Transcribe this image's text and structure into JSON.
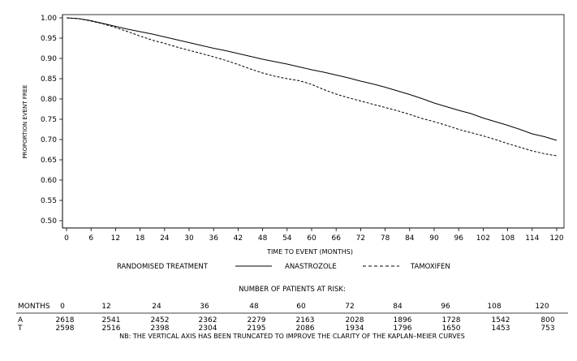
{
  "chart_data": {
    "type": "line",
    "title": "",
    "xlabel": "TIME TO EVENT (MONTHS)",
    "ylabel": "PROPORTION EVENT FREE",
    "xlim": [
      0,
      120
    ],
    "ylim": [
      0.5,
      1.0
    ],
    "x_ticks": [
      0,
      6,
      12,
      18,
      24,
      30,
      36,
      42,
      48,
      54,
      60,
      66,
      72,
      78,
      84,
      90,
      96,
      102,
      108,
      114,
      120
    ],
    "y_ticks": [
      "0.50",
      "0.55",
      "0.60",
      "0.65",
      "0.70",
      "0.75",
      "0.80",
      "0.85",
      "0.90",
      "0.95",
      "1.00"
    ],
    "grid": false,
    "legend": {
      "title": "RANDOMISED TREATMENT",
      "placement": "bottom"
    },
    "series": [
      {
        "name": "ANASTROZOLE",
        "style": "solid",
        "x": [
          0,
          3,
          6,
          9,
          12,
          15,
          18,
          21,
          24,
          27,
          30,
          33,
          36,
          39,
          42,
          45,
          48,
          51,
          54,
          57,
          60,
          63,
          66,
          69,
          72,
          75,
          78,
          81,
          84,
          87,
          90,
          93,
          96,
          99,
          102,
          105,
          108,
          111,
          114,
          117,
          120
        ],
        "values": [
          1.0,
          0.998,
          0.993,
          0.986,
          0.979,
          0.972,
          0.966,
          0.96,
          0.953,
          0.946,
          0.939,
          0.932,
          0.925,
          0.919,
          0.912,
          0.905,
          0.898,
          0.892,
          0.886,
          0.879,
          0.872,
          0.866,
          0.859,
          0.852,
          0.844,
          0.837,
          0.829,
          0.82,
          0.811,
          0.801,
          0.79,
          0.781,
          0.772,
          0.764,
          0.753,
          0.744,
          0.735,
          0.725,
          0.714,
          0.707,
          0.698
        ]
      },
      {
        "name": "TAMOXIFEN",
        "style": "dashed",
        "x": [
          0,
          3,
          6,
          9,
          12,
          15,
          18,
          21,
          24,
          27,
          30,
          33,
          36,
          39,
          42,
          45,
          48,
          51,
          54,
          57,
          60,
          63,
          66,
          69,
          72,
          75,
          78,
          81,
          84,
          87,
          90,
          93,
          96,
          99,
          102,
          105,
          108,
          111,
          114,
          117,
          120
        ],
        "values": [
          1.0,
          0.998,
          0.992,
          0.985,
          0.976,
          0.966,
          0.955,
          0.945,
          0.937,
          0.928,
          0.92,
          0.912,
          0.904,
          0.895,
          0.885,
          0.874,
          0.864,
          0.856,
          0.85,
          0.845,
          0.836,
          0.823,
          0.812,
          0.803,
          0.795,
          0.787,
          0.779,
          0.771,
          0.762,
          0.752,
          0.744,
          0.735,
          0.725,
          0.717,
          0.709,
          0.7,
          0.69,
          0.681,
          0.672,
          0.665,
          0.66
        ]
      }
    ]
  },
  "risk_table": {
    "title": "NUMBER OF PATIENTS AT RISK:",
    "months_label": "MONTHS",
    "months": [
      "0",
      "12",
      "24",
      "36",
      "48",
      "60",
      "72",
      "84",
      "96",
      "108",
      "120"
    ],
    "rows": [
      {
        "label": "A",
        "values": [
          "2618",
          "2541",
          "2452",
          "2362",
          "2279",
          "2163",
          "2028",
          "1896",
          "1728",
          "1542",
          "800"
        ]
      },
      {
        "label": "T",
        "values": [
          "2598",
          "2516",
          "2398",
          "2304",
          "2195",
          "2086",
          "1934",
          "1796",
          "1650",
          "1453",
          "753"
        ]
      }
    ]
  },
  "footnote": "NB: THE VERTICAL AXIS HAS BEEN TRUNCATED TO IMPROVE THE CLARITY OF THE KAPLAN–MEIER CURVES"
}
